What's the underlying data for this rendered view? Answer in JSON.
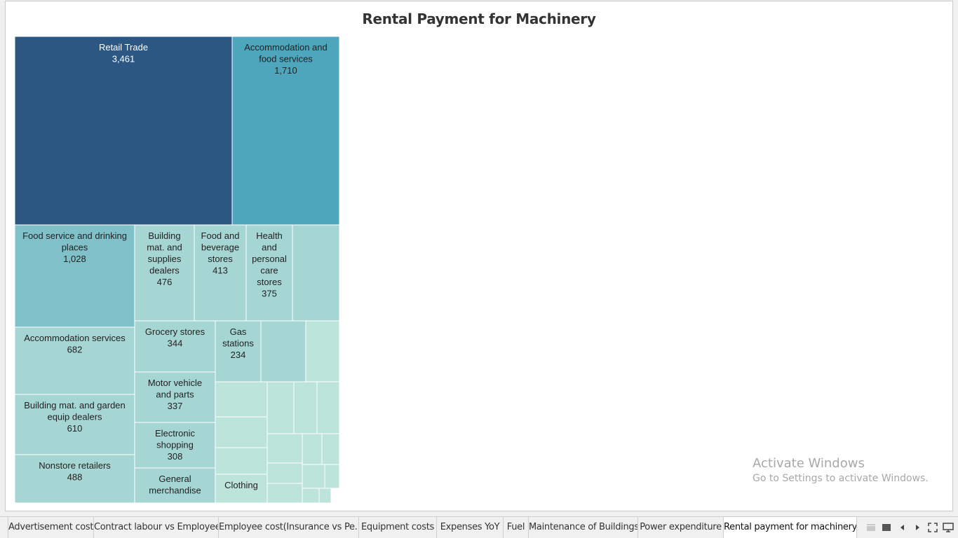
{
  "chart_data": {
    "type": "treemap",
    "title": "Rental Payment for Machinery",
    "colors": {
      "dark": "#2d5783",
      "mid": "#4ea6bc",
      "light": "#7fc0c9",
      "pale": "#a6d6d3",
      "palest": "#bce4da"
    },
    "nodes": [
      {
        "label": "Retail Trade",
        "value": "3,461"
      },
      {
        "label": "Accommodation and food services",
        "value": "1,710"
      },
      {
        "label": "Food service and drinking places",
        "value": "1,028"
      },
      {
        "label": "Building mat. and supplies dealers",
        "value": "476"
      },
      {
        "label": "Food and beverage stores",
        "value": "413"
      },
      {
        "label": "Health and personal care stores",
        "value": "375"
      },
      {
        "label": "",
        "value": ""
      },
      {
        "label": "Accommodation services",
        "value": "682"
      },
      {
        "label": "Grocery stores",
        "value": "344"
      },
      {
        "label": "Gas stations",
        "value": "234"
      },
      {
        "label": "",
        "value": ""
      },
      {
        "label": "",
        "value": ""
      },
      {
        "label": "Building mat. and garden equip dealers",
        "value": "610"
      },
      {
        "label": "Motor vehicle and parts",
        "value": "337"
      },
      {
        "label": "Nonstore retailers",
        "value": "488"
      },
      {
        "label": "Electronic shopping",
        "value": "308"
      },
      {
        "label": "General merchandise",
        "value": ""
      },
      {
        "label": "Clothing",
        "value": ""
      },
      {
        "label": "",
        "value": ""
      },
      {
        "label": "",
        "value": ""
      },
      {
        "label": "",
        "value": ""
      },
      {
        "label": "",
        "value": ""
      },
      {
        "label": "",
        "value": ""
      },
      {
        "label": "",
        "value": ""
      },
      {
        "label": "",
        "value": ""
      },
      {
        "label": "",
        "value": ""
      },
      {
        "label": "",
        "value": ""
      },
      {
        "label": "",
        "value": ""
      },
      {
        "label": "",
        "value": ""
      },
      {
        "label": "",
        "value": ""
      },
      {
        "label": "",
        "value": ""
      },
      {
        "label": "",
        "value": ""
      },
      {
        "label": "",
        "value": ""
      }
    ]
  },
  "watermark": {
    "line1": "Activate Windows",
    "line2": "Go to Settings to activate Windows."
  },
  "tabs": [
    {
      "label": "Advertisement cost",
      "active": false
    },
    {
      "label": "Contract labour vs Employee",
      "active": false
    },
    {
      "label": "Employee cost(Insurance vs Pe...",
      "active": false
    },
    {
      "label": "Equipment costs",
      "active": false
    },
    {
      "label": "Expenses YoY",
      "active": false
    },
    {
      "label": "Fuel",
      "active": false
    },
    {
      "label": "Maintenance of Buildings",
      "active": false
    },
    {
      "label": "Power expenditure",
      "active": false
    },
    {
      "label": "Rental payment for machinery",
      "active": true
    }
  ],
  "tab_controls": [
    "sheet-sorter-icon",
    "filmstrip-icon",
    "prev-sheet-icon",
    "next-sheet-icon",
    "fullscreen-icon",
    "presentation-icon"
  ]
}
